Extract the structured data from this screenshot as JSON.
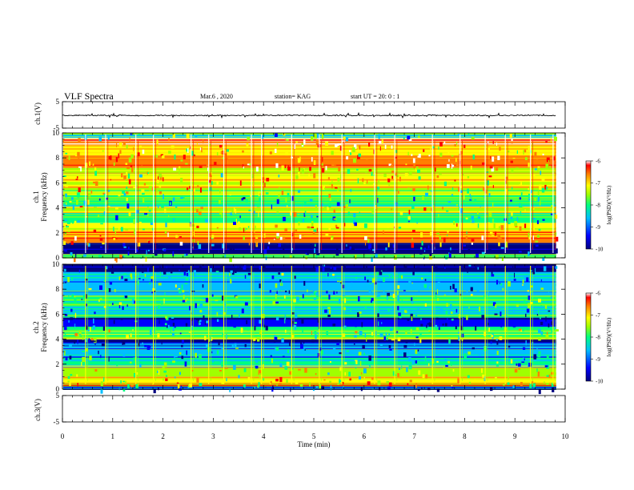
{
  "header": {
    "title": "VLF Spectra",
    "date": "Mar.6 , 2020",
    "station": "station= KAG",
    "start": "start UT = 20: 0 : 1"
  },
  "chart_data": [
    {
      "type": "line",
      "panel": "ch1-waveform",
      "ylabel": "ch.1(V)",
      "ylim": [
        -5,
        5
      ],
      "yticks": [
        "5",
        "-5"
      ],
      "xlim": [
        0,
        10
      ],
      "description_values": {
        "trace_level": -0.2
      }
    },
    {
      "type": "heatmap",
      "panel": "ch1-spectrogram",
      "ylabel_channel": "ch.1",
      "ylabel": "Frequency (kHz)",
      "ylim": [
        0,
        10
      ],
      "yticks": [
        "0",
        "2",
        "4",
        "6",
        "8",
        "10"
      ],
      "xlim": [
        0,
        10
      ],
      "colorbar": {
        "label": "log(PSD)(V²/Hz)",
        "ticks": [
          "-6",
          "-7",
          "-8",
          "-9",
          "-10"
        ],
        "range": [
          -10,
          -6
        ]
      },
      "bands": [
        {
          "f0": 0.0,
          "f1": 0.3,
          "level": -8.2
        },
        {
          "f0": 0.3,
          "f1": 1.2,
          "level": -9.8
        },
        {
          "f0": 1.2,
          "f1": 2.2,
          "level": -7.2
        },
        {
          "f0": 2.2,
          "f1": 2.8,
          "level": -7.5
        },
        {
          "f0": 2.8,
          "f1": 3.6,
          "level": -8.5
        },
        {
          "f0": 3.6,
          "f1": 4.2,
          "level": -7.8
        },
        {
          "f0": 4.2,
          "f1": 5.0,
          "level": -8.6
        },
        {
          "f0": 5.0,
          "f1": 5.6,
          "level": -8.0
        },
        {
          "f0": 5.6,
          "f1": 6.6,
          "level": -7.4
        },
        {
          "f0": 6.6,
          "f1": 7.2,
          "level": -7.8
        },
        {
          "f0": 7.2,
          "f1": 8.2,
          "level": -6.9
        },
        {
          "f0": 8.2,
          "f1": 9.0,
          "level": -7.3
        },
        {
          "f0": 9.0,
          "f1": 9.6,
          "level": -6.8
        },
        {
          "f0": 9.6,
          "f1": 10.0,
          "level": -8.4
        }
      ],
      "sferics_min": [
        0.45,
        0.85,
        1.45,
        1.8,
        2.55,
        2.9,
        3.2,
        3.75,
        3.95,
        4.55,
        5.1,
        5.55,
        6.2,
        6.6,
        7.35,
        7.9,
        8.4,
        8.8,
        9.3,
        9.75
      ]
    },
    {
      "type": "heatmap",
      "panel": "ch2-spectrogram",
      "ylabel_channel": "ch.2",
      "ylabel": "Frequency (kHz)",
      "ylim": [
        0,
        10
      ],
      "yticks": [
        "0",
        "2",
        "4",
        "6",
        "8",
        "10"
      ],
      "xlim": [
        0,
        10
      ],
      "colorbar": {
        "label": "log(PSD)(V²/Hz)",
        "ticks": [
          "-6",
          "-7",
          "-8",
          "-9",
          "-10"
        ],
        "range": [
          -10,
          -6
        ]
      },
      "bands": [
        {
          "f0": 0.0,
          "f1": 0.3,
          "level": -9.9
        },
        {
          "f0": 0.3,
          "f1": 1.0,
          "level": -7.6
        },
        {
          "f0": 1.0,
          "f1": 1.8,
          "level": -8.0
        },
        {
          "f0": 1.8,
          "f1": 2.6,
          "level": -8.6
        },
        {
          "f0": 2.6,
          "f1": 3.4,
          "level": -9.0
        },
        {
          "f0": 3.4,
          "f1": 4.0,
          "level": -9.8
        },
        {
          "f0": 4.0,
          "f1": 5.0,
          "level": -8.3
        },
        {
          "f0": 5.0,
          "f1": 5.8,
          "level": -9.7
        },
        {
          "f0": 5.8,
          "f1": 6.6,
          "level": -8.9
        },
        {
          "f0": 6.6,
          "f1": 7.4,
          "level": -8.5
        },
        {
          "f0": 7.4,
          "f1": 8.4,
          "level": -8.8
        },
        {
          "f0": 8.4,
          "f1": 9.4,
          "level": -8.9
        },
        {
          "f0": 9.4,
          "f1": 10.0,
          "level": -9.9
        }
      ],
      "sferics_min": [
        0.45,
        0.85,
        1.45,
        1.8,
        2.55,
        2.9,
        3.2,
        3.75,
        3.95,
        4.55,
        5.1,
        5.55,
        6.2,
        6.6,
        7.35,
        7.9,
        8.4,
        8.8,
        9.3,
        9.75
      ]
    },
    {
      "type": "line",
      "panel": "ch3-waveform",
      "ylabel": "ch.3(V)",
      "ylim": [
        -5,
        5
      ],
      "yticks": [
        "5",
        "-5"
      ],
      "xlim": [
        0,
        10
      ]
    }
  ],
  "xaxis": {
    "label": "Time (min)",
    "ticks": [
      "0",
      "1",
      "2",
      "3",
      "4",
      "5",
      "6",
      "7",
      "8",
      "9",
      "10"
    ],
    "data_end": 9.82
  },
  "colors": {
    "colormap": [
      "#000080",
      "#0000ff",
      "#00bfff",
      "#00ff80",
      "#a0ff00",
      "#ffff00",
      "#ff8000",
      "#ff0000",
      "#ffffff"
    ]
  }
}
